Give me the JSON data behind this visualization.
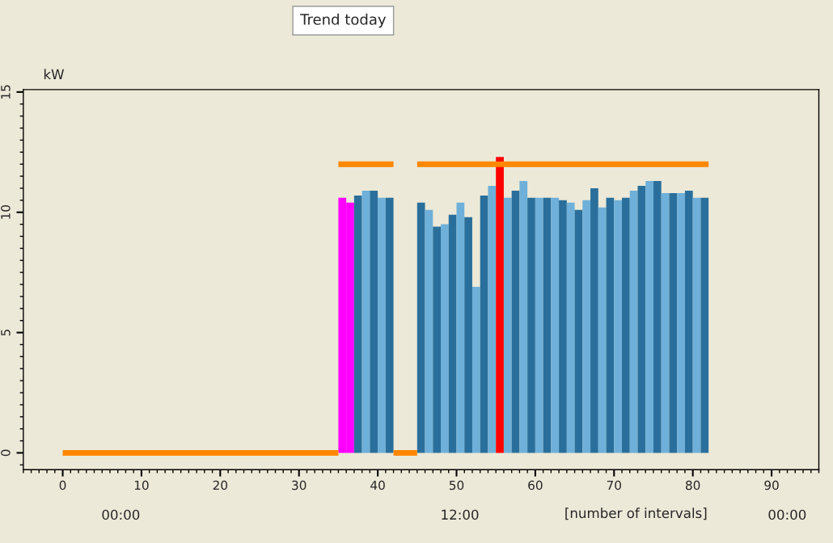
{
  "chart_data": {
    "type": "bar",
    "title": "Trend today",
    "ylabel": "kW",
    "xlabel": "[number of intervals]",
    "annotations": [
      "00:00",
      "12:00",
      "00:00"
    ],
    "series": [
      {
        "x": [
          35,
          36,
          37,
          38,
          39,
          40,
          41,
          42,
          43,
          44,
          45,
          46,
          47,
          48,
          49,
          50,
          51,
          52,
          53,
          54,
          55,
          56,
          57,
          58,
          59,
          60,
          61,
          62,
          63,
          64,
          65,
          66,
          67,
          68,
          69,
          70,
          71,
          72,
          73,
          74,
          75,
          76,
          77,
          78,
          79,
          80,
          81
        ],
        "values": [
          10.6,
          10.4,
          10.7,
          10.9,
          10.9,
          10.6,
          10.6,
          null,
          null,
          null,
          10.4,
          10.1,
          9.4,
          9.5,
          9.9,
          10.4,
          9.8,
          6.9,
          10.7,
          11.1,
          12.3,
          10.6,
          10.9,
          11.3,
          10.6,
          10.6,
          10.6,
          10.6,
          10.5,
          10.4,
          10.1,
          10.5,
          11.0,
          10.2,
          10.6,
          10.5,
          10.6,
          10.9,
          11.1,
          11.3,
          11.3,
          10.8,
          10.8,
          10.8,
          10.9,
          10.6,
          10.6
        ],
        "colors": [
          "#ff00ff",
          "#ff00ff",
          "#2a6f9b",
          "#6eb0d9",
          "#2a6f9b",
          "#6eb0d9",
          "#2a6f9b",
          null,
          null,
          null,
          "#2a6f9b",
          "#6eb0d9",
          "#2a6f9b",
          "#6eb0d9",
          "#2a6f9b",
          "#6eb0d9",
          "#2a6f9b",
          "#6eb0d9",
          "#2a6f9b",
          "#6eb0d9",
          "#ff0000",
          "#6eb0d9",
          "#2a6f9b",
          "#6eb0d9",
          "#2a6f9b",
          "#6eb0d9",
          "#2a6f9b",
          "#6eb0d9",
          "#2a6f9b",
          "#6eb0d9",
          "#2a6f9b",
          "#6eb0d9",
          "#2a6f9b",
          "#6eb0d9",
          "#2a6f9b",
          "#6eb0d9",
          "#2a6f9b",
          "#6eb0d9",
          "#2a6f9b",
          "#6eb0d9",
          "#2a6f9b",
          "#6eb0d9",
          "#2a6f9b",
          "#6eb0d9",
          "#2a6f9b",
          "#6eb0d9",
          "#2a6f9b"
        ]
      },
      {
        "type": "line",
        "color": "#ff8800",
        "x": [
          0,
          35
        ],
        "values": [
          0,
          0
        ]
      },
      {
        "type": "line",
        "color": "#ff8800",
        "x": [
          35,
          42
        ],
        "values": [
          12,
          12
        ]
      },
      {
        "type": "line",
        "color": "#ff8800",
        "x": [
          42,
          45
        ],
        "values": [
          0,
          0
        ]
      },
      {
        "type": "line",
        "color": "#ff8800",
        "x": [
          45,
          82
        ],
        "values": [
          12,
          12
        ]
      }
    ],
    "xlim": [
      -5,
      96
    ],
    "xticks": [
      0,
      10,
      20,
      30,
      40,
      50,
      60,
      70,
      80,
      90
    ],
    "ylim": [
      -0.7,
      15.1
    ],
    "yticks": [
      0,
      5,
      10,
      15
    ],
    "grid": false,
    "legend": false
  }
}
